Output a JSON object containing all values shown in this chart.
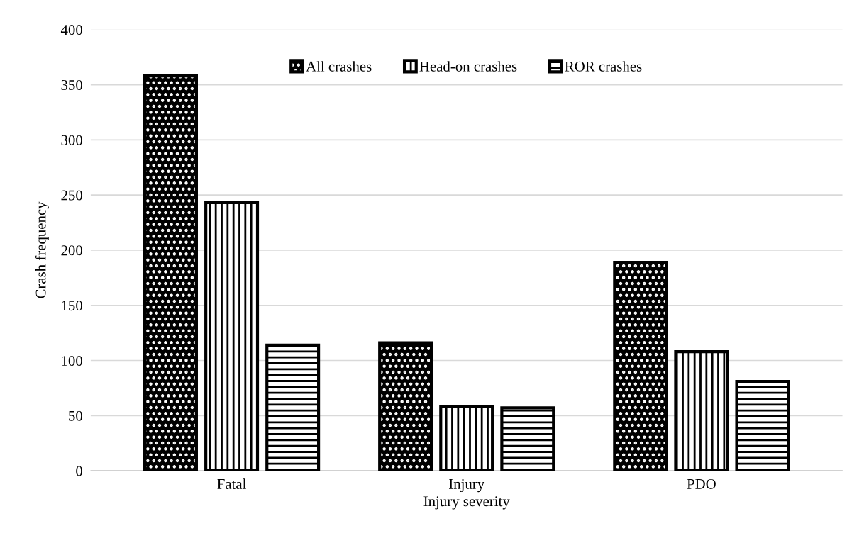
{
  "chart_data": {
    "type": "bar",
    "xlabel": "Injury severity",
    "ylabel": "Crash frequency",
    "categories": [
      "Fatal",
      "Injury",
      "PDO"
    ],
    "series": [
      {
        "name": "All crashes",
        "color": "#000000",
        "values": [
          358,
          116,
          189
        ]
      },
      {
        "name": "Head-on crashes",
        "color": "#000000",
        "values": [
          243,
          58,
          108
        ]
      },
      {
        "name": "ROR crashes",
        "color": "#000000",
        "values": [
          114,
          57,
          81
        ]
      }
    ],
    "ylim": [
      0,
      400
    ],
    "yticks": [
      0,
      50,
      100,
      150,
      200,
      250,
      300,
      350,
      400
    ],
    "grid": "y",
    "legend": "top"
  }
}
